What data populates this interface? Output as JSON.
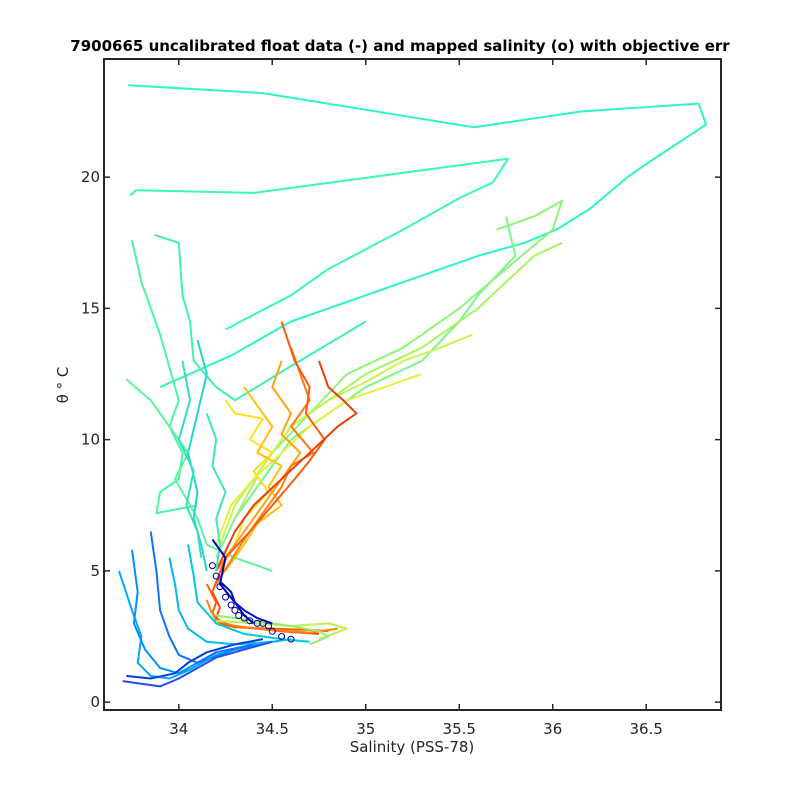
{
  "chart_data": {
    "type": "line",
    "title": "7900665 uncalibrated float data (-) and mapped salinity (o) with objective err",
    "xlabel": "Salinity (PSS-78)",
    "ylabel": "θ ° C",
    "xlim": [
      33.6,
      36.9
    ],
    "ylim": [
      -0.3,
      24.5
    ],
    "x_ticks": [
      34,
      34.5,
      35,
      35.5,
      36,
      36.5
    ],
    "x_tick_labels": [
      "34",
      "34.5",
      "35",
      "35.5",
      "36",
      "36.5"
    ],
    "y_ticks": [
      0,
      5,
      10,
      15,
      20
    ],
    "y_tick_labels": [
      "0",
      "5",
      "10",
      "15",
      "20"
    ],
    "grid": false,
    "colormap": "jet",
    "series": [
      {
        "color": "#2ef5c4",
        "x": [
          33.73,
          34.45,
          35.58,
          36.15,
          36.78,
          36.82,
          36.5,
          36.4,
          36.2,
          36.02,
          35.85,
          35.6,
          35.0,
          34.6,
          34.28,
          33.9
        ],
        "y": [
          23.5,
          23.2,
          21.9,
          22.5,
          22.8,
          22.0,
          20.5,
          20.0,
          18.8,
          18.0,
          17.5,
          17.0,
          15.5,
          14.5,
          13.2,
          12.0
        ]
      },
      {
        "color": "#3bf7b8",
        "x": [
          33.74,
          33.77,
          34.4,
          35.76,
          35.68,
          35.5,
          35.2,
          34.8,
          34.6,
          34.33,
          34.28,
          34.25
        ],
        "y": [
          19.3,
          19.5,
          19.4,
          20.7,
          19.8,
          19.2,
          18.0,
          16.5,
          15.5,
          14.5,
          14.3,
          14.2
        ]
      },
      {
        "color": "#4af5a8",
        "x": [
          33.75,
          33.8,
          33.9,
          34.0,
          33.95,
          34.02,
          34.0,
          33.9,
          33.88,
          34.1
        ],
        "y": [
          17.6,
          16.0,
          14.0,
          11.5,
          10.5,
          9.5,
          8.5,
          8.0,
          7.2,
          7.5
        ]
      },
      {
        "color": "#40f0b0",
        "x": [
          33.87,
          34.0,
          34.02,
          34.06,
          34.08,
          34.2,
          34.3,
          34.6,
          35.0
        ],
        "y": [
          17.8,
          17.5,
          15.5,
          14.5,
          13.0,
          12.0,
          11.5,
          12.8,
          14.5
        ]
      },
      {
        "color": "#5ef59a",
        "x": [
          33.72,
          33.85,
          33.95,
          34.05,
          33.98,
          34.1,
          34.15,
          34.3,
          34.5
        ],
        "y": [
          12.3,
          11.5,
          10.5,
          9.5,
          8.5,
          7.0,
          6.0,
          5.5,
          5.0
        ]
      },
      {
        "color": "#7af58a",
        "x": [
          35.75,
          35.8,
          35.6,
          35.5,
          35.3,
          35.0,
          34.8,
          34.6,
          34.45,
          34.3,
          34.2
        ],
        "y": [
          18.5,
          17.0,
          15.5,
          14.5,
          13.0,
          12.0,
          11.0,
          10.0,
          8.5,
          7.0,
          5.5
        ]
      },
      {
        "color": "#8ef57a",
        "x": [
          35.7,
          35.9,
          36.05,
          36.0,
          35.75,
          35.5,
          35.2,
          34.9,
          34.7,
          34.5,
          34.3
        ],
        "y": [
          18.0,
          18.5,
          19.1,
          18.0,
          16.5,
          15.0,
          13.5,
          12.5,
          11.0,
          9.5,
          7.5
        ]
      },
      {
        "color": "#a8f560",
        "x": [
          36.05,
          35.9,
          35.6,
          35.3,
          35.0,
          34.8,
          34.6,
          34.45,
          34.3
        ],
        "y": [
          17.5,
          17.0,
          15.0,
          13.5,
          12.5,
          11.5,
          10.5,
          9.0,
          7.0
        ]
      },
      {
        "color": "#c8f550",
        "x": [
          35.57,
          35.4,
          35.2,
          35.0,
          34.8,
          34.6,
          34.45,
          34.3,
          34.22
        ],
        "y": [
          14.0,
          13.5,
          13.0,
          12.2,
          11.5,
          10.5,
          9.0,
          7.5,
          6.0
        ]
      },
      {
        "color": "#e4f040",
        "x": [
          35.3,
          35.1,
          34.9,
          34.7,
          34.55,
          34.4,
          34.28,
          34.2
        ],
        "y": [
          12.5,
          12.0,
          11.5,
          10.5,
          9.5,
          8.5,
          7.5,
          6.0
        ]
      },
      {
        "color": "#ffe020",
        "x": [
          34.25,
          34.3,
          34.45,
          34.38,
          34.5,
          34.4,
          34.48,
          34.35,
          34.3,
          34.22
        ],
        "y": [
          11.5,
          11.0,
          10.8,
          10.0,
          9.5,
          8.8,
          8.0,
          7.0,
          6.0,
          5.0
        ]
      },
      {
        "color": "#ffc010",
        "x": [
          34.35,
          34.45,
          34.5,
          34.42,
          34.55,
          34.48,
          34.55,
          34.42,
          34.35,
          34.25
        ],
        "y": [
          12.0,
          11.0,
          10.5,
          9.5,
          9.0,
          8.2,
          7.5,
          6.8,
          6.0,
          5.0
        ]
      },
      {
        "color": "#ffa010",
        "x": [
          34.55,
          34.5,
          34.6,
          34.55,
          34.65,
          34.55,
          34.5,
          34.4,
          34.3,
          34.2
        ],
        "y": [
          13.0,
          12.0,
          11.0,
          10.2,
          9.5,
          8.5,
          8.0,
          7.0,
          6.0,
          5.0
        ]
      },
      {
        "color": "#ff7a10",
        "x": [
          34.6,
          34.65,
          34.7,
          34.6,
          34.72,
          34.6,
          34.55,
          34.45,
          34.35,
          34.2
        ],
        "y": [
          13.5,
          12.5,
          11.5,
          10.5,
          9.5,
          9.0,
          8.2,
          7.2,
          6.2,
          4.5
        ]
      },
      {
        "color": "#ff5a08",
        "x": [
          34.55,
          34.62,
          34.7,
          34.68,
          34.78,
          34.7,
          34.62,
          34.5,
          34.38,
          34.25,
          34.18
        ],
        "y": [
          14.5,
          13.0,
          12.0,
          11.0,
          10.0,
          9.2,
          8.5,
          7.5,
          6.5,
          5.5,
          4.2
        ]
      },
      {
        "color": "#e84010",
        "x": [
          34.75,
          34.8,
          34.88,
          34.95,
          34.85,
          34.7,
          34.55,
          34.4,
          34.3,
          34.2
        ],
        "y": [
          13.0,
          12.0,
          11.5,
          11.0,
          10.5,
          9.5,
          8.5,
          7.5,
          6.5,
          5.0
        ]
      },
      {
        "color": "#ff6000",
        "x": [
          34.15,
          34.2,
          34.18,
          34.22,
          34.3,
          34.5,
          34.7,
          34.8
        ],
        "y": [
          4.5,
          3.8,
          3.4,
          3.0,
          2.85,
          2.8,
          2.75,
          2.7
        ]
      },
      {
        "color": "#ff4a00",
        "x": [
          34.18,
          34.22,
          34.2,
          34.25,
          34.35,
          34.55,
          34.75
        ],
        "y": [
          4.2,
          3.6,
          3.2,
          2.95,
          2.85,
          2.7,
          2.6
        ]
      },
      {
        "color": "#ff8010",
        "x": [
          34.15,
          34.17,
          34.2,
          34.3,
          34.5,
          34.7,
          34.85
        ],
        "y": [
          3.9,
          3.5,
          3.1,
          2.9,
          2.75,
          2.65,
          2.8
        ]
      },
      {
        "color": "#c0f050",
        "x": [
          34.2,
          34.4,
          34.6,
          34.8,
          34.9,
          34.75
        ],
        "y": [
          3.1,
          3.0,
          2.9,
          3.0,
          2.8,
          2.4
        ]
      },
      {
        "color": "#90f070",
        "x": [
          34.2,
          34.4,
          34.6,
          34.75,
          34.8,
          34.7
        ],
        "y": [
          3.3,
          3.1,
          2.9,
          2.7,
          2.5,
          2.2
        ]
      },
      {
        "color": "#00a8ff",
        "x": [
          33.68,
          33.75,
          33.8,
          33.78,
          33.85,
          33.95,
          34.05,
          34.2,
          34.4,
          34.6
        ],
        "y": [
          5.0,
          3.5,
          2.5,
          1.5,
          1.0,
          0.9,
          1.2,
          1.8,
          2.2,
          2.4
        ]
      },
      {
        "color": "#0090ff",
        "x": [
          33.75,
          33.78,
          33.76,
          33.82,
          33.9,
          34.0,
          34.1,
          34.3,
          34.5
        ],
        "y": [
          5.8,
          4.2,
          3.0,
          2.0,
          1.3,
          1.1,
          1.5,
          2.0,
          2.3
        ]
      },
      {
        "color": "#1070ff",
        "x": [
          33.85,
          33.88,
          33.9,
          33.95,
          34.0,
          34.1,
          34.2,
          34.4
        ],
        "y": [
          6.5,
          5.0,
          3.5,
          2.5,
          1.8,
          1.5,
          1.9,
          2.2
        ]
      },
      {
        "color": "#00b8f0",
        "x": [
          33.95,
          33.98,
          34.0,
          34.05,
          34.15,
          34.3,
          34.5
        ],
        "y": [
          5.5,
          4.5,
          3.5,
          2.8,
          2.3,
          2.2,
          2.3
        ]
      },
      {
        "color": "#2050f0",
        "x": [
          33.7,
          33.8,
          33.9,
          34.0,
          34.1,
          34.2,
          34.35,
          34.5
        ],
        "y": [
          0.8,
          0.7,
          0.6,
          0.9,
          1.3,
          1.7,
          2.0,
          2.3
        ]
      },
      {
        "color": "#0040d0",
        "x": [
          33.72,
          33.85,
          33.98,
          34.05,
          34.15,
          34.3,
          34.45
        ],
        "y": [
          1.0,
          0.9,
          1.1,
          1.5,
          1.9,
          2.2,
          2.4
        ]
      },
      {
        "color": "#00c8e0",
        "x": [
          34.05,
          34.08,
          34.1,
          34.2,
          34.35,
          34.55,
          34.7
        ],
        "y": [
          6.0,
          4.8,
          3.8,
          3.0,
          2.6,
          2.4,
          2.3
        ]
      },
      {
        "color": "#20d8d0",
        "x": [
          34.1,
          34.15,
          34.1,
          34.05,
          34.1,
          34.08,
          34.12,
          34.15
        ],
        "y": [
          13.8,
          12.5,
          11.0,
          9.5,
          8.0,
          7.0,
          6.0,
          5.0
        ]
      },
      {
        "color": "#30e0c0",
        "x": [
          34.02,
          34.06,
          34.0,
          34.08,
          34.04,
          34.1,
          34.12
        ],
        "y": [
          13.0,
          11.5,
          10.0,
          8.8,
          7.5,
          6.5,
          5.5
        ]
      },
      {
        "color": "#40e8b8",
        "x": [
          34.15,
          34.2,
          34.18,
          34.25,
          34.2,
          34.22,
          34.2
        ],
        "y": [
          11.0,
          10.0,
          9.0,
          8.0,
          7.0,
          6.0,
          5.0
        ]
      },
      {
        "color": "#0000b0",
        "x": [
          34.18,
          34.25,
          34.22,
          34.3,
          34.35,
          34.4
        ],
        "y": [
          6.2,
          5.5,
          4.5,
          3.8,
          3.3,
          3.0
        ]
      },
      {
        "color": "#0010c8",
        "x": [
          34.22,
          34.28,
          34.3,
          34.35,
          34.42,
          34.5
        ],
        "y": [
          4.6,
          4.2,
          3.8,
          3.5,
          3.2,
          3.0
        ]
      }
    ],
    "mapped_salinity_points": {
      "color": "#0000a0",
      "x": [
        34.18,
        34.2,
        34.22,
        34.25,
        34.28,
        34.3,
        34.32,
        34.35,
        34.38,
        34.42,
        34.45,
        34.48,
        34.5,
        34.55,
        34.6
      ],
      "y": [
        5.2,
        4.8,
        4.4,
        4.0,
        3.7,
        3.5,
        3.3,
        3.2,
        3.1,
        3.0,
        3.0,
        2.9,
        2.7,
        2.5,
        2.4
      ]
    }
  }
}
